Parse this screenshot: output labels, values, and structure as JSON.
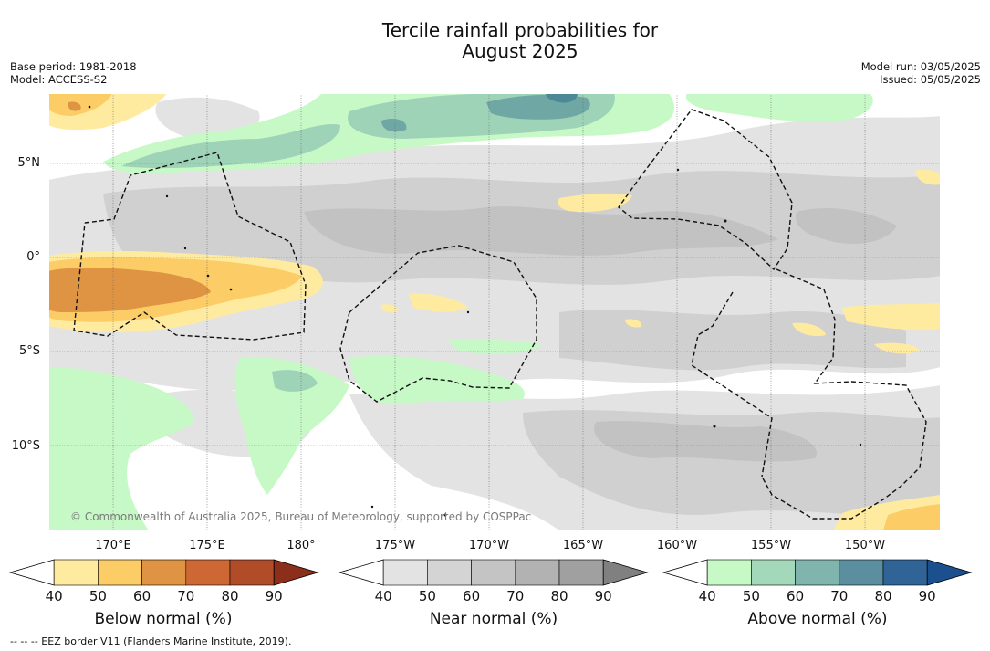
{
  "title_line1": "Tercile rainfall probabilities for",
  "title_line2": "August 2025",
  "meta_left": [
    "Base period: 1981-2018",
    "Model: ACCESS-S2"
  ],
  "meta_right": [
    "Model run: 03/05/2025",
    "Issued: 05/05/2025"
  ],
  "map": {
    "lat_labels": [
      "5°N",
      "0°",
      "5°S",
      "10°S"
    ],
    "lon_labels": [
      "170°E",
      "175°E",
      "180°",
      "175°W",
      "170°W",
      "165°W",
      "160°W",
      "155°W",
      "150°W"
    ],
    "copyright": "© Commonwealth of Australia 2025, Bureau of Meteorology, supported by COSPPac",
    "colors": {
      "near_light": "#e3e3e3",
      "near_mid": "#d0d0d0",
      "near_dark": "#c2c2c2",
      "below_1": "#ffeba0",
      "below_2": "#fccc66",
      "below_3": "#de9443",
      "above_1": "#c6f9c6",
      "above_2": "#9ed3b8",
      "above_3": "#6ea7a4",
      "above_4": "#4d8897"
    }
  },
  "colorbars": [
    {
      "title": "Below normal (%)",
      "ticks": [
        "40",
        "50",
        "60",
        "70",
        "80",
        "90"
      ],
      "colors": [
        "#ffffff",
        "#ffeba0",
        "#fccc66",
        "#de9443",
        "#cd6835",
        "#b04c28",
        "#8b2e1a"
      ]
    },
    {
      "title": "Near normal (%)",
      "ticks": [
        "40",
        "50",
        "60",
        "70",
        "80",
        "90"
      ],
      "colors": [
        "#ffffff",
        "#e3e3e3",
        "#d4d4d4",
        "#c4c4c4",
        "#b2b2b2",
        "#a0a0a0",
        "#808080"
      ]
    },
    {
      "title": "Above normal (%)",
      "ticks": [
        "40",
        "50",
        "60",
        "70",
        "80",
        "90"
      ],
      "colors": [
        "#ffffff",
        "#c6f9c6",
        "#a3d8bb",
        "#7fb5ac",
        "#5b8fa0",
        "#306497",
        "#1c4f8e"
      ]
    }
  ],
  "footnote": "--  --  -- EEZ border V11 (Flanders Marine Institute, 2019)."
}
